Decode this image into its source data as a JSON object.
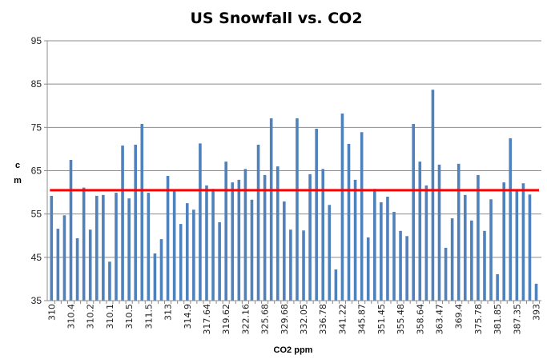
{
  "chart_data": {
    "type": "bar",
    "title": "US Snowfall vs. CO2",
    "xlabel": "CO2 ppm",
    "ylabel": "cm",
    "ylim": [
      35,
      95
    ],
    "yticks": [
      35,
      45,
      55,
      65,
      75,
      85,
      95
    ],
    "grid": true,
    "legend": "none",
    "colors": {
      "bars": "#4f81bd",
      "reference_line": "#ff0000",
      "grid": "#8c8c8c"
    },
    "categories": [
      "310",
      "",
      "",
      "310.4",
      "",
      "",
      "310.2",
      "",
      "",
      "310.1",
      "",
      "",
      "310.5",
      "",
      "",
      "311.5",
      "",
      "",
      "313",
      "",
      "",
      "314.9",
      "",
      "",
      "317.64",
      "",
      "",
      "319.62",
      "",
      "",
      "322.16",
      "",
      "",
      "325.68",
      "",
      "",
      "329.68",
      "",
      "",
      "332.05",
      "",
      "",
      "336.78",
      "",
      "",
      "341.22",
      "",
      "",
      "345.87",
      "",
      "",
      "351.45",
      "",
      "",
      "355.48",
      "",
      "",
      "358.64",
      "",
      "",
      "363.47",
      "",
      "",
      "369.4",
      "",
      "",
      "375.78",
      "",
      "",
      "381.85",
      "",
      "",
      "387.35",
      "",
      "",
      "393"
    ],
    "values": [
      59.2,
      51.6,
      54.7,
      67.5,
      49.4,
      61.1,
      51.4,
      59.2,
      59.4,
      44.0,
      59.9,
      70.8,
      58.6,
      71.0,
      75.8,
      59.9,
      45.9,
      49.2,
      63.8,
      60.4,
      52.7,
      57.5,
      56.0,
      71.3,
      61.6,
      60.8,
      53.1,
      67.1,
      62.3,
      62.9,
      65.4,
      58.3,
      71.0,
      64.0,
      77.1,
      66.0,
      57.9,
      51.4,
      77.1,
      51.2,
      64.2,
      74.7,
      65.4,
      57.1,
      42.2,
      78.2,
      71.2,
      62.9,
      73.9,
      49.6,
      60.8,
      57.7,
      59.0,
      55.5,
      51.1,
      49.9,
      75.8,
      67.1,
      61.6,
      83.7,
      66.4,
      47.2,
      54.0,
      66.6,
      59.4,
      53.5,
      64.0,
      51.1,
      58.4,
      41.1,
      62.3,
      72.5,
      60.6,
      62.1,
      59.5,
      38.9
    ],
    "reference_line": 60.5
  }
}
